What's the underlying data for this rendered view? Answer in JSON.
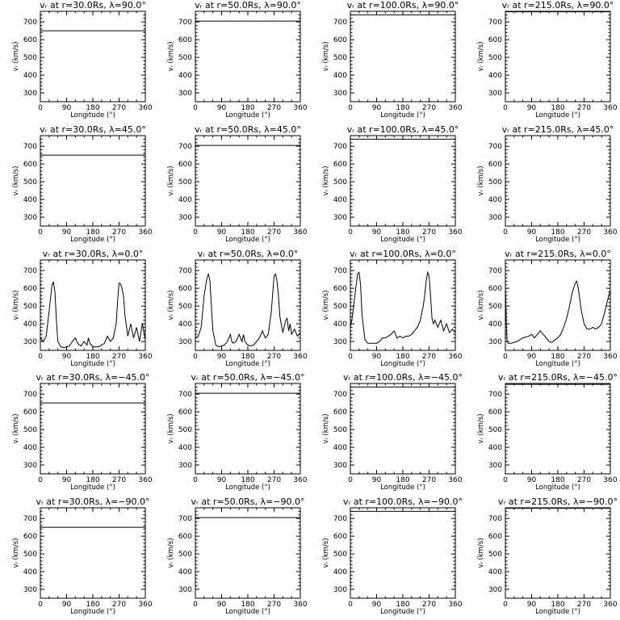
{
  "chart_data": [
    {
      "type": "line",
      "title": "vᵣ at r=30.0Rs, λ=90.0°",
      "xlabel": "Longitude (°)",
      "ylabel": "vᵣ (km/s)",
      "xlim": [
        0,
        360
      ],
      "ylim": [
        250,
        760
      ],
      "xticks": [
        0,
        90,
        180,
        270,
        360
      ],
      "yticks": [
        300,
        400,
        500,
        600,
        700
      ],
      "x": [
        0,
        360
      ],
      "y": [
        650,
        650
      ]
    },
    {
      "type": "line",
      "title": "vᵣ at r=50.0Rs, λ=90.0°",
      "xlabel": "Longitude (°)",
      "ylabel": "vᵣ (km/s)",
      "xlim": [
        0,
        360
      ],
      "ylim": [
        250,
        760
      ],
      "xticks": [
        0,
        90,
        180,
        270,
        360
      ],
      "yticks": [
        300,
        400,
        500,
        600,
        700
      ],
      "x": [
        0,
        360
      ],
      "y": [
        705,
        705
      ]
    },
    {
      "type": "line",
      "title": "vᵣ at r=100.0Rs, λ=90.0°",
      "xlabel": "Longitude (°)",
      "ylabel": "vᵣ (km/s)",
      "xlim": [
        0,
        360
      ],
      "ylim": [
        250,
        760
      ],
      "xticks": [
        0,
        90,
        180,
        270,
        360
      ],
      "yticks": [
        300,
        400,
        500,
        600,
        700
      ],
      "x": [
        0,
        360
      ],
      "y": [
        740,
        740
      ]
    },
    {
      "type": "line",
      "title": "vᵣ at r=215.0Rs, λ=90.0°",
      "xlabel": "Longitude (°)",
      "ylabel": "vᵣ (km/s)",
      "xlim": [
        0,
        360
      ],
      "ylim": [
        250,
        760
      ],
      "xticks": [
        0,
        90,
        180,
        270,
        360
      ],
      "yticks": [
        300,
        400,
        500,
        600,
        700
      ],
      "x": [
        0,
        360
      ],
      "y": [
        757,
        757
      ]
    },
    {
      "type": "line",
      "title": "vᵣ at r=30.0Rs, λ=45.0°",
      "xlabel": "Longitude (°)",
      "ylabel": "vᵣ (km/s)",
      "xlim": [
        0,
        360
      ],
      "ylim": [
        250,
        760
      ],
      "xticks": [
        0,
        90,
        180,
        270,
        360
      ],
      "yticks": [
        300,
        400,
        500,
        600,
        700
      ],
      "x": [
        0,
        360
      ],
      "y": [
        650,
        650
      ]
    },
    {
      "type": "line",
      "title": "vᵣ at r=50.0Rs, λ=45.0°",
      "xlabel": "Longitude (°)",
      "ylabel": "vᵣ (km/s)",
      "xlim": [
        0,
        360
      ],
      "ylim": [
        250,
        760
      ],
      "xticks": [
        0,
        90,
        180,
        270,
        360
      ],
      "yticks": [
        300,
        400,
        500,
        600,
        700
      ],
      "x": [
        0,
        360
      ],
      "y": [
        705,
        705
      ]
    },
    {
      "type": "line",
      "title": "vᵣ at r=100.0Rs, λ=45.0°",
      "xlabel": "Longitude (°)",
      "ylabel": "vᵣ (km/s)",
      "xlim": [
        0,
        360
      ],
      "ylim": [
        250,
        760
      ],
      "xticks": [
        0,
        90,
        180,
        270,
        360
      ],
      "yticks": [
        300,
        400,
        500,
        600,
        700
      ],
      "x": [
        0,
        360
      ],
      "y": [
        740,
        740
      ]
    },
    {
      "type": "line",
      "title": "vᵣ at r=215.0Rs, λ=45.0°",
      "xlabel": "Longitude (°)",
      "ylabel": "vᵣ (km/s)",
      "xlim": [
        0,
        360
      ],
      "ylim": [
        250,
        760
      ],
      "xticks": [
        0,
        90,
        180,
        270,
        360
      ],
      "yticks": [
        300,
        400,
        500,
        600,
        700
      ],
      "x": [],
      "y": []
    },
    {
      "type": "line",
      "title": "vᵣ at r=30.0Rs, λ=0.0°",
      "xlabel": "Longitude (°)",
      "ylabel": "vᵣ (km/s)",
      "xlim": [
        0,
        360
      ],
      "ylim": [
        250,
        760
      ],
      "xticks": [
        0,
        90,
        180,
        270,
        360
      ],
      "yticks": [
        300,
        400,
        500,
        600,
        700
      ],
      "x": [
        0,
        10,
        20,
        30,
        40,
        45,
        50,
        55,
        60,
        70,
        80,
        90,
        100,
        110,
        120,
        125,
        130,
        140,
        150,
        160,
        165,
        170,
        180,
        190,
        200,
        210,
        220,
        230,
        240,
        250,
        260,
        265,
        270,
        275,
        280,
        285,
        290,
        300,
        310,
        320,
        330,
        340,
        350,
        360
      ],
      "y": [
        320,
        300,
        330,
        470,
        620,
        635,
        580,
        420,
        300,
        270,
        265,
        270,
        275,
        300,
        320,
        300,
        285,
        275,
        300,
        280,
        320,
        290,
        270,
        270,
        270,
        280,
        290,
        330,
        300,
        320,
        400,
        530,
        630,
        625,
        600,
        560,
        450,
        330,
        400,
        320,
        380,
        300,
        400,
        310
      ]
    },
    {
      "type": "line",
      "title": "vᵣ at r=50.0Rs, λ=0.0°",
      "xlabel": "Longitude (°)",
      "ylabel": "vᵣ (km/s)",
      "xlim": [
        0,
        360
      ],
      "ylim": [
        250,
        760
      ],
      "xticks": [
        0,
        90,
        180,
        270,
        360
      ],
      "yticks": [
        300,
        400,
        500,
        600,
        700
      ],
      "x": [
        0,
        10,
        20,
        30,
        40,
        45,
        50,
        55,
        60,
        70,
        80,
        90,
        100,
        110,
        120,
        125,
        130,
        140,
        150,
        160,
        165,
        170,
        180,
        190,
        200,
        210,
        220,
        230,
        240,
        250,
        260,
        270,
        275,
        280,
        285,
        290,
        300,
        310,
        315,
        320,
        325,
        330,
        340,
        350,
        360
      ],
      "y": [
        320,
        330,
        380,
        560,
        660,
        680,
        640,
        500,
        360,
        280,
        270,
        275,
        280,
        300,
        340,
        300,
        290,
        300,
        340,
        300,
        340,
        300,
        280,
        275,
        280,
        300,
        320,
        360,
        320,
        340,
        460,
        670,
        680,
        640,
        560,
        440,
        350,
        420,
        430,
        360,
        400,
        340,
        370,
        330,
        350
      ]
    },
    {
      "type": "line",
      "title": "vᵣ at r=100.0Rs, λ=0.0°",
      "xlabel": "Longitude (°)",
      "ylabel": "vᵣ (km/s)",
      "xlim": [
        0,
        360
      ],
      "ylim": [
        250,
        760
      ],
      "xticks": [
        0,
        90,
        180,
        270,
        360
      ],
      "yticks": [
        300,
        400,
        500,
        600,
        700
      ],
      "x": [
        0,
        5,
        10,
        20,
        25,
        30,
        35,
        40,
        50,
        60,
        70,
        80,
        90,
        100,
        110,
        120,
        130,
        140,
        150,
        160,
        170,
        180,
        190,
        200,
        210,
        220,
        230,
        240,
        250,
        255,
        260,
        265,
        270,
        275,
        280,
        285,
        290,
        300,
        310,
        320,
        330,
        340,
        350,
        360
      ],
      "y": [
        380,
        420,
        480,
        620,
        680,
        690,
        620,
        450,
        310,
        290,
        290,
        290,
        290,
        300,
        320,
        320,
        330,
        340,
        360,
        320,
        330,
        320,
        330,
        330,
        340,
        360,
        380,
        420,
        500,
        560,
        640,
        690,
        670,
        560,
        430,
        400,
        420,
        380,
        420,
        360,
        400,
        350,
        370,
        350
      ]
    },
    {
      "type": "line",
      "title": "vᵣ at r=215.0Rs, λ=0.0°",
      "xlabel": "Longitude (°)",
      "ylabel": "vᵣ (km/s)",
      "xlim": [
        0,
        360
      ],
      "ylim": [
        250,
        760
      ],
      "xticks": [
        0,
        90,
        180,
        270,
        360
      ],
      "yticks": [
        300,
        400,
        500,
        600,
        700
      ],
      "x": [
        0,
        3,
        6,
        10,
        20,
        30,
        40,
        50,
        60,
        70,
        80,
        90,
        100,
        110,
        120,
        130,
        140,
        150,
        160,
        170,
        180,
        190,
        200,
        210,
        220,
        230,
        240,
        245,
        250,
        260,
        270,
        280,
        290,
        300,
        310,
        320,
        330,
        340,
        350,
        360
      ],
      "y": [
        620,
        420,
        300,
        290,
        290,
        295,
        300,
        310,
        320,
        325,
        330,
        340,
        320,
        340,
        360,
        340,
        320,
        300,
        295,
        310,
        320,
        340,
        380,
        430,
        500,
        580,
        630,
        640,
        600,
        480,
        400,
        370,
        370,
        380,
        370,
        380,
        400,
        460,
        530,
        590
      ]
    },
    {
      "type": "line",
      "title": "vᵣ at r=30.0Rs, λ=−45.0°",
      "xlabel": "Longitude (°)",
      "ylabel": "vᵣ (km/s)",
      "xlim": [
        0,
        360
      ],
      "ylim": [
        250,
        760
      ],
      "xticks": [
        0,
        90,
        180,
        270,
        360
      ],
      "yticks": [
        300,
        400,
        500,
        600,
        700
      ],
      "x": [
        0,
        360
      ],
      "y": [
        650,
        650
      ]
    },
    {
      "type": "line",
      "title": "vᵣ at r=50.0Rs, λ=−45.0°",
      "xlabel": "Longitude (°)",
      "ylabel": "vᵣ (km/s)",
      "xlim": [
        0,
        360
      ],
      "ylim": [
        250,
        760
      ],
      "xticks": [
        0,
        90,
        180,
        270,
        360
      ],
      "yticks": [
        300,
        400,
        500,
        600,
        700
      ],
      "x": [
        0,
        360
      ],
      "y": [
        705,
        705
      ]
    },
    {
      "type": "line",
      "title": "vᵣ at r=100.0Rs, λ=−45.0°",
      "xlabel": "Longitude (°)",
      "ylabel": "vᵣ (km/s)",
      "xlim": [
        0,
        360
      ],
      "ylim": [
        250,
        760
      ],
      "xticks": [
        0,
        90,
        180,
        270,
        360
      ],
      "yticks": [
        300,
        400,
        500,
        600,
        700
      ],
      "x": [
        0,
        360
      ],
      "y": [
        740,
        740
      ]
    },
    {
      "type": "line",
      "title": "vᵣ at r=215.0Rs, λ=−45.0°",
      "xlabel": "Longitude (°)",
      "ylabel": "vᵣ (km/s)",
      "xlim": [
        0,
        360
      ],
      "ylim": [
        250,
        760
      ],
      "xticks": [
        0,
        90,
        180,
        270,
        360
      ],
      "yticks": [
        300,
        400,
        500,
        600,
        700
      ],
      "x": [
        0,
        360
      ],
      "y": [
        755,
        755
      ]
    },
    {
      "type": "line",
      "title": "vᵣ at r=30.0Rs, λ=−90.0°",
      "xlabel": "Longitude (°)",
      "ylabel": "vᵣ (km/s)",
      "xlim": [
        0,
        360
      ],
      "ylim": [
        250,
        760
      ],
      "xticks": [
        0,
        90,
        180,
        270,
        360
      ],
      "yticks": [
        300,
        400,
        500,
        600,
        700
      ],
      "x": [
        0,
        360
      ],
      "y": [
        650,
        650
      ]
    },
    {
      "type": "line",
      "title": "vᵣ at r=50.0Rs, λ=−90.0°",
      "xlabel": "Longitude (°)",
      "ylabel": "vᵣ (km/s)",
      "xlim": [
        0,
        360
      ],
      "ylim": [
        250,
        760
      ],
      "xticks": [
        0,
        90,
        180,
        270,
        360
      ],
      "yticks": [
        300,
        400,
        500,
        600,
        700
      ],
      "x": [
        0,
        360
      ],
      "y": [
        705,
        705
      ]
    },
    {
      "type": "line",
      "title": "vᵣ at r=100.0Rs, λ=−90.0°",
      "xlabel": "Longitude (°)",
      "ylabel": "vᵣ (km/s)",
      "xlim": [
        0,
        360
      ],
      "ylim": [
        250,
        760
      ],
      "xticks": [
        0,
        90,
        180,
        270,
        360
      ],
      "yticks": [
        300,
        400,
        500,
        600,
        700
      ],
      "x": [
        0,
        360
      ],
      "y": [
        740,
        740
      ]
    },
    {
      "type": "line",
      "title": "vᵣ at r=215.0Rs, λ=−90.0°",
      "xlabel": "Longitude (°)",
      "ylabel": "vᵣ (km/s)",
      "xlim": [
        0,
        360
      ],
      "ylim": [
        250,
        760
      ],
      "xticks": [
        0,
        90,
        180,
        270,
        360
      ],
      "yticks": [
        300,
        400,
        500,
        600,
        700
      ],
      "x": [
        0,
        360
      ],
      "y": [
        757,
        757
      ]
    }
  ]
}
